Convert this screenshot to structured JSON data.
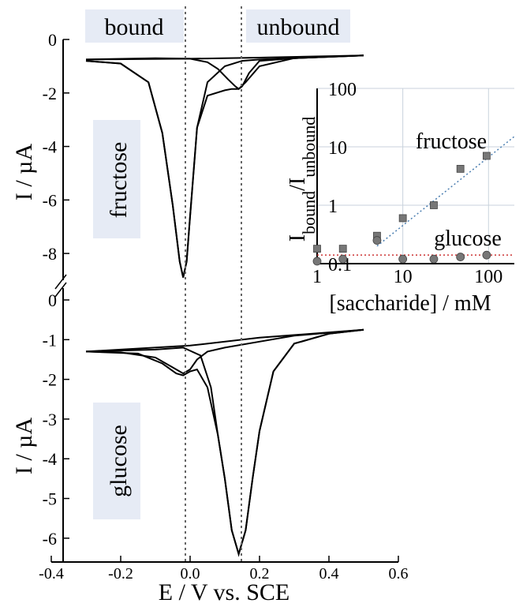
{
  "chart_data": [
    {
      "type": "line",
      "title": "",
      "ylabel": "I / µA",
      "series_label": "fructose",
      "ylim": [
        -9,
        0
      ],
      "yticks": [
        "0",
        "-2",
        "-4",
        "-6",
        "-8"
      ],
      "series": [
        {
          "x": [
            -0.3,
            -0.2,
            -0.12,
            -0.08,
            -0.05,
            -0.03,
            -0.02,
            -0.01,
            0.0,
            0.02,
            0.05,
            0.1,
            0.15,
            0.2,
            0.3,
            0.4,
            0.5
          ],
          "y": [
            -0.8,
            -0.9,
            -1.6,
            -3.5,
            -6.2,
            -8.3,
            -8.9,
            -8.3,
            -6.6,
            -3.3,
            -1.6,
            -1.0,
            -0.8,
            -0.75,
            -0.7,
            -0.65,
            -0.6
          ]
        },
        {
          "x": [
            -0.3,
            -0.2,
            -0.12,
            -0.08,
            -0.05,
            -0.03,
            -0.02,
            -0.01,
            0.0,
            0.02,
            0.05,
            0.1,
            0.12,
            0.14,
            0.16,
            0.2,
            0.3,
            0.4,
            0.5
          ],
          "y": [
            -0.8,
            -0.9,
            -1.6,
            -3.5,
            -6.2,
            -8.3,
            -8.9,
            -8.3,
            -6.6,
            -3.3,
            -2.1,
            -1.9,
            -1.85,
            -1.85,
            -1.6,
            -1.0,
            -0.7,
            -0.65,
            -0.6
          ]
        },
        {
          "x": [
            -0.3,
            -0.1,
            0.0,
            0.05,
            0.08,
            0.11,
            0.13,
            0.14,
            0.15,
            0.17,
            0.2,
            0.3,
            0.5
          ],
          "y": [
            -0.75,
            -0.7,
            -0.72,
            -0.85,
            -1.1,
            -1.5,
            -1.75,
            -1.85,
            -1.75,
            -1.25,
            -0.8,
            -0.7,
            -0.6
          ]
        },
        {
          "x": [
            -0.3,
            0.0,
            0.2,
            0.5
          ],
          "y": [
            -0.75,
            -0.72,
            -0.68,
            -0.6
          ]
        }
      ]
    },
    {
      "type": "line",
      "title": "",
      "xlabel": "E / V vs. SCE",
      "ylabel": "I / µA",
      "series_label": "glucose",
      "xlim": [
        -0.4,
        0.6
      ],
      "ylim": [
        -6.6,
        0
      ],
      "xticks": [
        "-0.4",
        "-0.2",
        "0.0",
        "0.2",
        "0.4",
        "0.6"
      ],
      "yticks": [
        "0",
        "-1",
        "-2",
        "-3",
        "-4",
        "-5",
        "-6"
      ],
      "series": [
        {
          "x": [
            -0.3,
            -0.15,
            -0.08,
            -0.04,
            -0.02,
            0.0,
            0.02,
            0.05,
            0.08,
            0.1,
            0.12,
            0.14,
            0.16,
            0.18,
            0.2,
            0.24,
            0.3,
            0.4,
            0.5
          ],
          "y": [
            -1.3,
            -1.35,
            -1.6,
            -1.85,
            -1.9,
            -1.8,
            -1.75,
            -2.2,
            -3.4,
            -4.5,
            -5.8,
            -6.4,
            -5.8,
            -4.5,
            -3.3,
            -1.8,
            -1.1,
            -0.85,
            -0.75
          ]
        },
        {
          "x": [
            -0.3,
            -0.2,
            -0.1,
            -0.05,
            -0.02,
            0.0,
            0.02,
            0.05,
            0.1,
            0.2,
            0.3,
            0.5
          ],
          "y": [
            -1.3,
            -1.32,
            -1.45,
            -1.7,
            -1.85,
            -1.75,
            -1.5,
            -1.3,
            -1.2,
            -1.05,
            -0.9,
            -0.75
          ]
        },
        {
          "x": [
            -0.3,
            -0.1,
            -0.02,
            0.03,
            0.06,
            0.08,
            0.1,
            0.12,
            0.14,
            0.16,
            0.18,
            0.2,
            0.24,
            0.3,
            0.4,
            0.5
          ],
          "y": [
            -1.3,
            -1.25,
            -1.2,
            -1.4,
            -2.2,
            -3.4,
            -4.5,
            -5.8,
            -6.4,
            -5.8,
            -4.5,
            -3.3,
            -1.8,
            -1.1,
            -0.85,
            -0.75
          ]
        },
        {
          "x": [
            -0.3,
            0.0,
            0.2,
            0.5
          ],
          "y": [
            -1.3,
            -1.15,
            -0.95,
            -0.75
          ]
        }
      ]
    },
    {
      "type": "scatter",
      "title": "",
      "xlabel": "[saccharide] / mM",
      "ylabel": "Ibound/Iunbound",
      "xscale": "log",
      "yscale": "log",
      "xlim": [
        1,
        200
      ],
      "ylim": [
        0.1,
        100
      ],
      "xticks": [
        "1",
        "10",
        "100"
      ],
      "yticks": [
        "0.1",
        "1",
        "10",
        "100"
      ],
      "grid": true,
      "series": [
        {
          "name": "fructose",
          "marker": "square",
          "color": "#777777",
          "x": [
            1,
            2,
            5,
            10,
            23,
            47,
            95
          ],
          "y": [
            0.18,
            0.18,
            0.3,
            0.6,
            1.0,
            4.2,
            7.0
          ]
        },
        {
          "name": "glucose",
          "marker": "circle",
          "color": "#777777",
          "x": [
            1,
            2,
            5,
            10,
            23,
            47,
            95
          ],
          "y": [
            0.11,
            0.12,
            0.25,
            0.12,
            0.12,
            0.13,
            0.14
          ]
        }
      ],
      "fits": [
        {
          "series": "fructose",
          "color": "#4a7db0",
          "x": [
            5,
            200
          ],
          "y": [
            0.2,
            15
          ]
        },
        {
          "series": "glucose",
          "color": "#cc3333",
          "x": [
            1,
            200
          ],
          "y": [
            0.14,
            0.14
          ]
        }
      ]
    }
  ],
  "annotations": {
    "bound": "bound",
    "unbound": "unbound",
    "fructose_label": "fructose",
    "glucose_label": "glucose",
    "colors": {
      "label_box": "#e6ebf5",
      "fructose_fit": "#4a7db0",
      "glucose_fit": "#cc3333",
      "markers": "#777777"
    }
  }
}
